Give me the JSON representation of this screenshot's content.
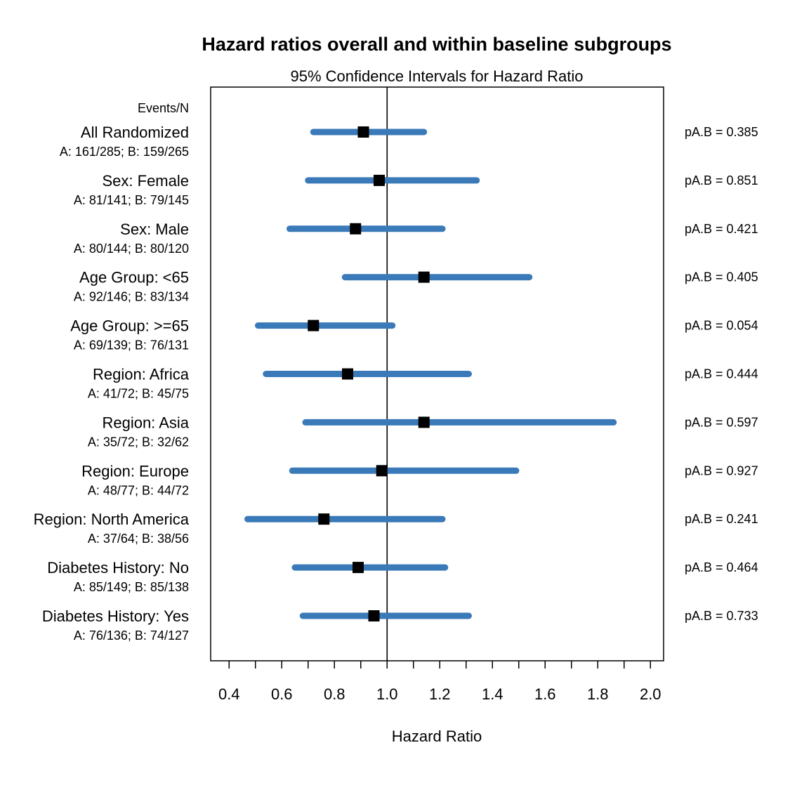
{
  "chart_data": {
    "type": "forest",
    "title": "Hazard ratios overall and within baseline subgroups",
    "subtitle": "95% Confidence Intervals for Hazard Ratio",
    "column_header": "Events/N",
    "xlabel": "Hazard Ratio",
    "xlim": [
      0.33,
      2.05
    ],
    "x_ticks": [
      0.4,
      0.5,
      0.6,
      0.7,
      0.8,
      0.9,
      1.0,
      1.1,
      1.2,
      1.3,
      1.4,
      1.5,
      1.6,
      1.7,
      1.8,
      1.9,
      2.0
    ],
    "x_tick_labels": [
      {
        "value": 0.4,
        "label": "0.4"
      },
      {
        "value": 0.6,
        "label": "0.6"
      },
      {
        "value": 0.8,
        "label": "0.8"
      },
      {
        "value": 1.0,
        "label": "1.0"
      },
      {
        "value": 1.2,
        "label": "1.2"
      },
      {
        "value": 1.4,
        "label": "1.4"
      },
      {
        "value": 1.6,
        "label": "1.6"
      },
      {
        "value": 1.8,
        "label": "1.8"
      },
      {
        "value": 2.0,
        "label": "2.0"
      }
    ],
    "reference_line": 1.0,
    "colors": {
      "ci": "#3a7ab8",
      "point": "#000000"
    },
    "rows": [
      {
        "label": "All Randomized",
        "counts": "A: 161/285; B: 159/265",
        "hr": 0.91,
        "lower": 0.72,
        "upper": 1.14,
        "p": "pA.B = 0.385"
      },
      {
        "label": "Sex: Female",
        "counts": "A: 81/141; B: 79/145",
        "hr": 0.97,
        "lower": 0.7,
        "upper": 1.34,
        "p": "pA.B = 0.851"
      },
      {
        "label": "Sex: Male",
        "counts": "A: 80/144; B: 80/120",
        "hr": 0.88,
        "lower": 0.63,
        "upper": 1.21,
        "p": "pA.B = 0.421"
      },
      {
        "label": "Age Group: <65",
        "counts": "A: 92/146; B: 83/134",
        "hr": 1.14,
        "lower": 0.84,
        "upper": 1.54,
        "p": "pA.B = 0.405"
      },
      {
        "label": "Age Group: >=65",
        "counts": "A: 69/139; B: 76/131",
        "hr": 0.72,
        "lower": 0.51,
        "upper": 1.02,
        "p": "pA.B = 0.054"
      },
      {
        "label": "Region: Africa",
        "counts": "A: 41/72; B: 45/75",
        "hr": 0.85,
        "lower": 0.54,
        "upper": 1.31,
        "p": "pA.B = 0.444"
      },
      {
        "label": "Region: Asia",
        "counts": "A: 35/72; B: 32/62",
        "hr": 1.14,
        "lower": 0.69,
        "upper": 1.86,
        "p": "pA.B = 0.597"
      },
      {
        "label": "Region: Europe",
        "counts": "A: 48/77; B: 44/72",
        "hr": 0.98,
        "lower": 0.64,
        "upper": 1.49,
        "p": "pA.B = 0.927"
      },
      {
        "label": "Region: North America",
        "counts": "A: 37/64; B: 38/56",
        "hr": 0.76,
        "lower": 0.47,
        "upper": 1.21,
        "p": "pA.B = 0.241"
      },
      {
        "label": "Diabetes History: No",
        "counts": "A: 85/149; B: 85/138",
        "hr": 0.89,
        "lower": 0.65,
        "upper": 1.22,
        "p": "pA.B = 0.464"
      },
      {
        "label": "Diabetes History: Yes",
        "counts": "A: 76/136; B: 74/127",
        "hr": 0.95,
        "lower": 0.68,
        "upper": 1.31,
        "p": "pA.B = 0.733"
      }
    ]
  }
}
